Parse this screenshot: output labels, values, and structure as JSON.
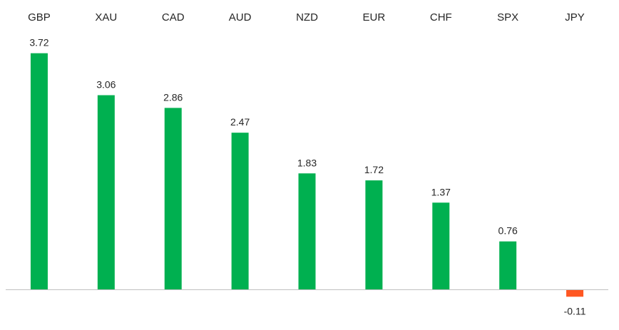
{
  "chart_data": {
    "type": "bar",
    "title": "",
    "xlabel": "",
    "ylabel": "",
    "categories": [
      "GBP",
      "XAU",
      "CAD",
      "AUD",
      "NZD",
      "EUR",
      "CHF",
      "SPX",
      "JPY"
    ],
    "values": [
      3.72,
      3.06,
      2.86,
      2.47,
      1.83,
      1.72,
      1.37,
      0.76,
      -0.11
    ],
    "value_labels": [
      "3.72",
      "3.06",
      "2.86",
      "2.47",
      "1.83",
      "1.72",
      "1.37",
      "0.76",
      "-0.11"
    ],
    "ylim": [
      -0.11,
      3.72
    ],
    "grid": false,
    "legend": "none",
    "category_labels_position": "top",
    "colors": {
      "positive": "#00B050",
      "negative": "#FF5722",
      "axis": "#BFBFBF",
      "text": "#262626"
    }
  }
}
